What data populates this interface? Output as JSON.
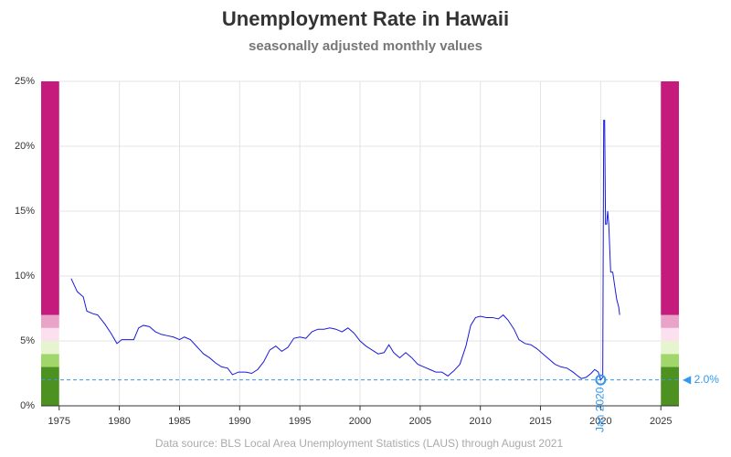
{
  "chart_data": {
    "type": "line",
    "title": "Unemployment Rate in Hawaii",
    "subtitle": "seasonally adjusted monthly values",
    "source": "Data source: BLS Local Area Unemployment Statistics (LAUS) through August 2021",
    "xlim": [
      1973.5,
      2026.5
    ],
    "xticks": [
      1975,
      1980,
      1985,
      1990,
      1995,
      2000,
      2005,
      2010,
      2015,
      2020,
      2025
    ],
    "ylim": [
      0,
      25
    ],
    "yticks": [
      {
        "value": 0,
        "label": "0%"
      },
      {
        "value": 5,
        "label": "5%"
      },
      {
        "value": 10,
        "label": "10%"
      },
      {
        "value": 15,
        "label": "15%"
      },
      {
        "value": 20,
        "label": "20%"
      },
      {
        "value": 25,
        "label": "25%"
      }
    ],
    "grid": true,
    "bands": [
      {
        "from": 0,
        "to": 3,
        "color": "#4d9221"
      },
      {
        "from": 3,
        "to": 4,
        "color": "#a1d76a"
      },
      {
        "from": 4,
        "to": 5,
        "color": "#e6f5d0"
      },
      {
        "from": 5,
        "to": 6,
        "color": "#fde0ef"
      },
      {
        "from": 6,
        "to": 7,
        "color": "#e9a3c9"
      },
      {
        "from": 7,
        "to": 25,
        "color": "#c51b7d"
      }
    ],
    "reference_line": {
      "value": 2.0,
      "label": "◀ 2.0%",
      "color": "#3399ee"
    },
    "annotation": {
      "text": "Jan 2020",
      "x": 2020.0,
      "y": 2.0,
      "color": "#3399ee"
    },
    "series": [
      {
        "name": "Hawaii",
        "color": "#1a1adb",
        "x": [
          1976.0,
          1976.5,
          1977.0,
          1977.3,
          1977.8,
          1978.2,
          1978.8,
          1979.3,
          1979.8,
          1980.2,
          1980.8,
          1981.2,
          1981.6,
          1982.0,
          1982.5,
          1983.0,
          1983.5,
          1984.0,
          1984.5,
          1985.0,
          1985.4,
          1985.9,
          1986.5,
          1987.0,
          1987.5,
          1988.0,
          1988.5,
          1989.0,
          1989.4,
          1989.9,
          1990.5,
          1991.0,
          1991.5,
          1992.0,
          1992.5,
          1993.0,
          1993.5,
          1994.0,
          1994.5,
          1995.0,
          1995.5,
          1996.0,
          1996.5,
          1997.0,
          1997.5,
          1998.0,
          1998.5,
          1999.0,
          1999.5,
          2000.0,
          2000.5,
          2001.0,
          2001.5,
          2002.0,
          2002.4,
          2002.8,
          2003.3,
          2003.8,
          2004.3,
          2004.8,
          2005.3,
          2005.8,
          2006.3,
          2006.8,
          2007.3,
          2007.8,
          2008.3,
          2008.8,
          2009.2,
          2009.6,
          2010.0,
          2010.5,
          2011.0,
          2011.5,
          2011.9,
          2012.3,
          2012.8,
          2013.2,
          2013.7,
          2014.2,
          2014.7,
          2015.2,
          2015.7,
          2016.2,
          2016.7,
          2017.2,
          2017.7,
          2018.1,
          2018.4,
          2018.8,
          2019.2,
          2019.5,
          2019.8,
          2020.0,
          2020.17,
          2020.25,
          2020.33,
          2020.4,
          2020.5,
          2020.58,
          2020.67,
          2020.83,
          2021.0,
          2021.17,
          2021.33,
          2021.5,
          2021.58
        ],
        "values": [
          9.8,
          8.8,
          8.4,
          7.3,
          7.1,
          7.0,
          6.3,
          5.6,
          4.8,
          5.1,
          5.1,
          5.1,
          6.0,
          6.2,
          6.1,
          5.7,
          5.5,
          5.4,
          5.3,
          5.1,
          5.3,
          5.1,
          4.5,
          4.0,
          3.7,
          3.3,
          3.0,
          2.9,
          2.4,
          2.6,
          2.6,
          2.5,
          2.8,
          3.4,
          4.3,
          4.6,
          4.2,
          4.5,
          5.2,
          5.3,
          5.2,
          5.7,
          5.9,
          5.9,
          6.0,
          5.9,
          5.7,
          6.0,
          5.6,
          5.0,
          4.6,
          4.3,
          4.0,
          4.1,
          4.7,
          4.1,
          3.7,
          4.1,
          3.7,
          3.2,
          3.0,
          2.8,
          2.6,
          2.6,
          2.3,
          2.7,
          3.2,
          4.6,
          6.2,
          6.8,
          6.9,
          6.8,
          6.8,
          6.7,
          7.0,
          6.6,
          5.9,
          5.1,
          4.8,
          4.7,
          4.4,
          4.0,
          3.6,
          3.2,
          3.0,
          2.9,
          2.6,
          2.3,
          2.1,
          2.2,
          2.5,
          2.8,
          2.6,
          2.0,
          2.2,
          22.0,
          22.0,
          14.0,
          14.0,
          15.0,
          14.0,
          10.3,
          10.3,
          9.2,
          8.2,
          7.6,
          7.0
        ]
      }
    ]
  }
}
